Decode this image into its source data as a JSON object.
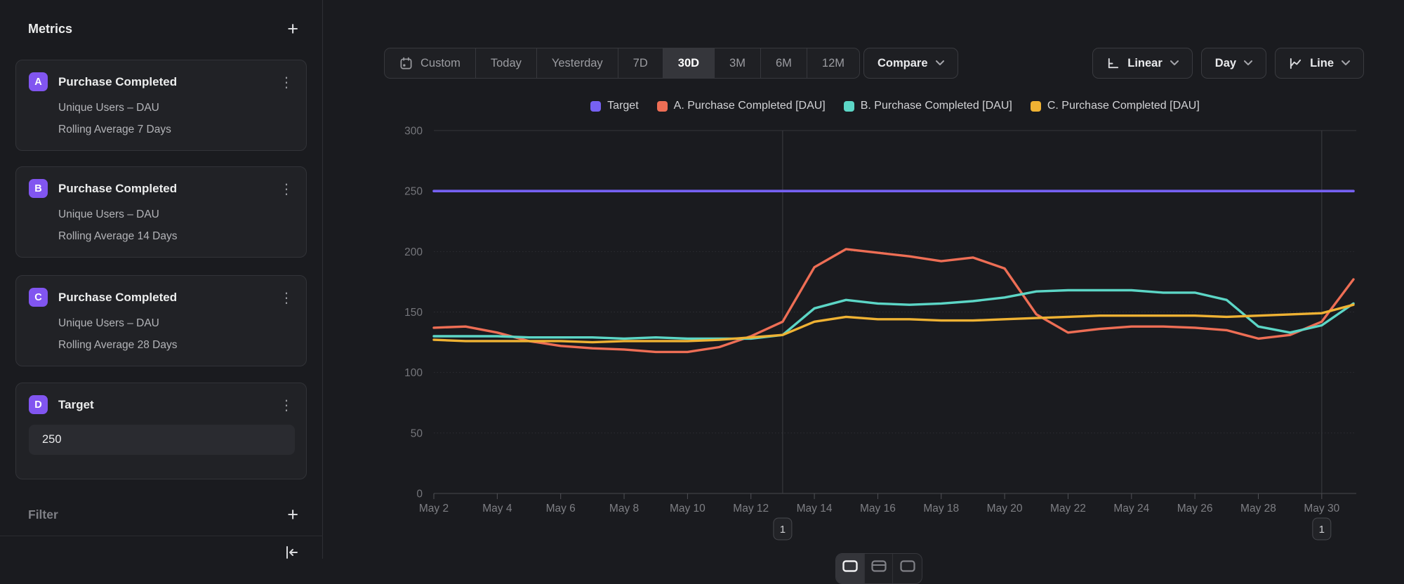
{
  "icons": {
    "plus": "+",
    "kebab": "⋮"
  },
  "sidebar": {
    "title": "Metrics",
    "metrics": [
      {
        "badge": "A",
        "title": "Purchase Completed",
        "line1": "Unique Users – DAU",
        "line2": "Rolling Average 7 Days"
      },
      {
        "badge": "B",
        "title": "Purchase Completed",
        "line1": "Unique Users – DAU",
        "line2": "Rolling Average 14 Days"
      },
      {
        "badge": "C",
        "title": "Purchase Completed",
        "line1": "Unique Users – DAU",
        "line2": "Rolling Average 28 Days"
      },
      {
        "badge": "D",
        "title": "Target",
        "value": "250"
      }
    ],
    "filter_label": "Filter"
  },
  "toolbar": {
    "ranges": [
      "Custom",
      "Today",
      "Yesterday",
      "7D",
      "30D",
      "3M",
      "6M",
      "12M"
    ],
    "selected_range": "30D",
    "compare_label": "Compare",
    "scale_label": "Linear",
    "granularity_label": "Day",
    "chart_type_label": "Line"
  },
  "chart_data": {
    "type": "line",
    "x": [
      "May 2",
      "May 3",
      "May 4",
      "May 5",
      "May 6",
      "May 7",
      "May 8",
      "May 9",
      "May 10",
      "May 11",
      "May 12",
      "May 13",
      "May 14",
      "May 15",
      "May 16",
      "May 17",
      "May 18",
      "May 19",
      "May 20",
      "May 21",
      "May 22",
      "May 23",
      "May 24",
      "May 25",
      "May 26",
      "May 27",
      "May 28",
      "May 29",
      "May 30",
      "May 31"
    ],
    "x_tick_every": 2,
    "ylim": [
      0,
      300
    ],
    "yticks": [
      0,
      50,
      100,
      150,
      200,
      250,
      300
    ],
    "grid": true,
    "legend_position": "top-center",
    "series": [
      {
        "name": "Target",
        "color": "#7661f2",
        "values": [
          250,
          250,
          250,
          250,
          250,
          250,
          250,
          250,
          250,
          250,
          250,
          250,
          250,
          250,
          250,
          250,
          250,
          250,
          250,
          250,
          250,
          250,
          250,
          250,
          250,
          250,
          250,
          250,
          250,
          250
        ]
      },
      {
        "name": "A. Purchase Completed [DAU]",
        "color": "#ee6e55",
        "values": [
          137,
          138,
          133,
          126,
          122,
          120,
          119,
          117,
          117,
          121,
          130,
          142,
          187,
          202,
          199,
          196,
          192,
          195,
          186,
          148,
          133,
          136,
          138,
          138,
          137,
          135,
          128,
          131,
          142,
          177
        ]
      },
      {
        "name": "B. Purchase Completed [DAU]",
        "color": "#5cd6c6",
        "values": [
          130,
          130,
          130,
          129,
          129,
          129,
          128,
          129,
          128,
          128,
          128,
          131,
          153,
          160,
          157,
          156,
          157,
          159,
          162,
          167,
          168,
          168,
          168,
          166,
          166,
          160,
          138,
          133,
          139,
          157
        ]
      },
      {
        "name": "C. Purchase Completed [DAU]",
        "color": "#efb233",
        "values": [
          127,
          126,
          126,
          126,
          126,
          125,
          126,
          126,
          126,
          127,
          129,
          131,
          142,
          146,
          144,
          144,
          143,
          143,
          144,
          145,
          146,
          147,
          147,
          147,
          147,
          146,
          147,
          148,
          149,
          156
        ]
      }
    ],
    "annotations": [
      {
        "x": "May 13",
        "label": "1"
      },
      {
        "x": "May 30",
        "label": "1"
      }
    ]
  }
}
